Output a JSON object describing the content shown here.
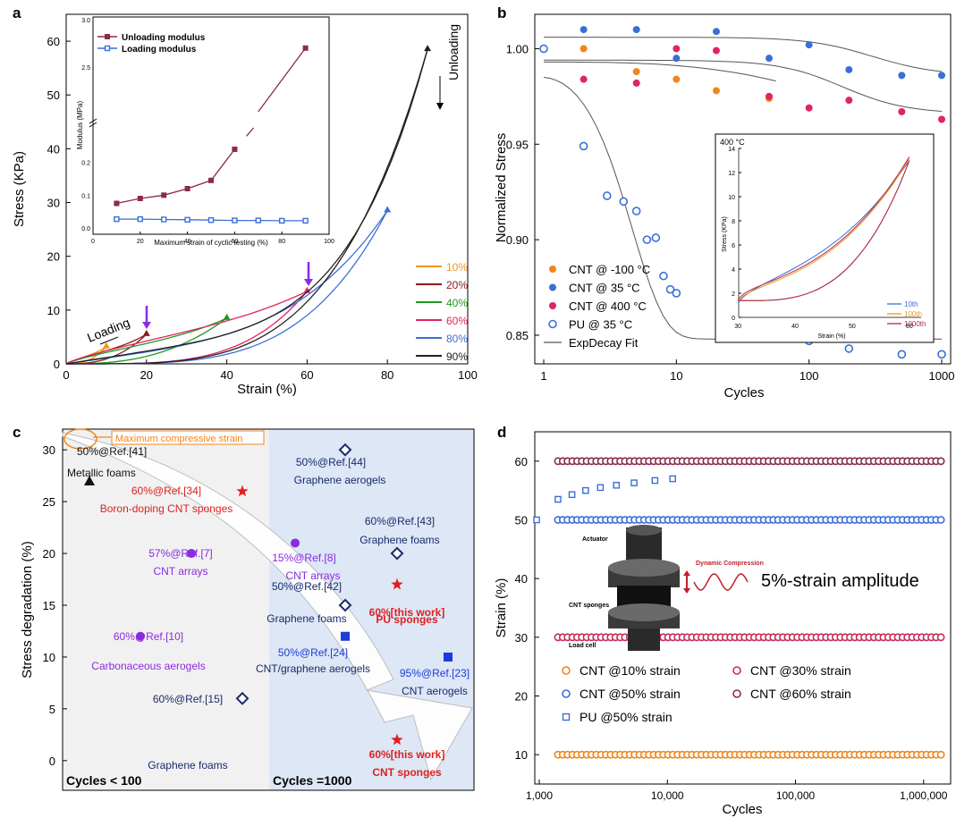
{
  "panel_letters": [
    "a",
    "b",
    "c",
    "d"
  ],
  "panel_a_notes": {
    "loading": "Loading",
    "unloading": "Unloading"
  },
  "panel_b_notes": {
    "inset_temp": "400 °C"
  },
  "panel_d_notes": {
    "actuator": "Actuator",
    "sponges": "CNT sponges",
    "load_cell": "Load cell",
    "dynamic": "Dynamic Compression",
    "amplitude": "5%-strain amplitude"
  },
  "chart_data": [
    {
      "id": "a",
      "type": "line",
      "xlabel": "Strain (%)",
      "ylabel": "Stress (KPa)",
      "xlim": [
        0,
        100
      ],
      "ylim": [
        0,
        65
      ],
      "xticks": [
        0,
        20,
        40,
        60,
        80,
        100
      ],
      "yticks": [
        0,
        10,
        20,
        30,
        40,
        50,
        60
      ],
      "legend_position": "right",
      "series": [
        {
          "name": "10%",
          "color": "#f0961c",
          "max_strain": 10,
          "peak": 3.2
        },
        {
          "name": "20%",
          "color": "#8b1a1a",
          "max_strain": 20,
          "peak": 5.5
        },
        {
          "name": "40%",
          "color": "#1f9a1f",
          "max_strain": 40,
          "peak": 8.5
        },
        {
          "name": "60%",
          "color": "#e0255f",
          "max_strain": 60,
          "peak": 13.5
        },
        {
          "name": "80%",
          "color": "#3a6fd8",
          "max_strain": 80,
          "peak": 28.5
        },
        {
          "name": "90%",
          "color": "#222222",
          "max_strain": 90,
          "peak": 58.5
        }
      ],
      "annotations": [
        "Loading",
        "Unloading"
      ],
      "inset": {
        "xlabel": "Maximum strain of cyclic testing (%)",
        "ylabel": "Modulus (MPa)",
        "xticks": [
          0,
          20,
          40,
          60,
          80,
          100
        ],
        "yticks_lower": [
          "0.0",
          "0.1",
          "0.2"
        ],
        "yticks_upper": [
          "2.5",
          "3.0"
        ],
        "series": [
          {
            "name": "Unloading modulus",
            "color": "#8b2a4a",
            "x": [
              10,
              20,
              30,
              40,
              50,
              60,
              90
            ],
            "y": [
              0.075,
              0.09,
              0.1,
              0.12,
              0.145,
              0.24,
              2.7
            ]
          },
          {
            "name": "Loading modulus",
            "color": "#3a6fd8",
            "x": [
              10,
              20,
              30,
              40,
              50,
              60,
              70,
              80,
              90
            ],
            "y": [
              0.027,
              0.027,
              0.026,
              0.025,
              0.024,
              0.023,
              0.023,
              0.022,
              0.022
            ]
          }
        ]
      }
    },
    {
      "id": "b",
      "type": "scatter",
      "xlabel": "Cycles",
      "ylabel": "Normalized Stress",
      "xscale": "log",
      "xlim": [
        1,
        1000
      ],
      "ylim": [
        0.835,
        1.018
      ],
      "xticks": [
        "1",
        "10",
        "100",
        "1000"
      ],
      "yticks": [
        "0.85",
        "0.90",
        "0.95",
        "1.00"
      ],
      "legend_position": "bottom-left",
      "series": [
        {
          "name": "CNT @ -100 °C",
          "color": "#f0861c",
          "marker": "filled",
          "x": [
            1,
            2,
            5,
            10,
            20,
            50,
            100,
            200,
            500,
            1000
          ],
          "y": [
            1.0,
            1.0,
            0.988,
            0.984,
            0.978,
            0.974,
            null,
            null,
            null,
            null
          ]
        },
        {
          "name": "CNT @ 35 °C",
          "color": "#3a6fd8",
          "marker": "filled",
          "x": [
            2,
            5,
            10,
            20,
            50,
            100,
            200,
            500,
            1000
          ],
          "y": [
            1.01,
            1.01,
            0.995,
            1.009,
            0.995,
            1.002,
            0.989,
            0.986,
            0.986
          ]
        },
        {
          "name": "CNT @ 400 °C",
          "color": "#e0255f",
          "marker": "filled",
          "x": [
            2,
            5,
            10,
            20,
            50,
            100,
            200,
            500,
            1000
          ],
          "y": [
            0.984,
            0.982,
            1.0,
            0.999,
            0.975,
            0.969,
            0.973,
            0.967,
            0.963
          ]
        },
        {
          "name": "PU @ 35 °C",
          "color": "#3a6fd8",
          "marker": "open",
          "x": [
            1,
            2,
            3,
            4,
            5,
            6,
            7,
            8,
            9,
            10,
            50,
            100,
            200,
            500,
            1000
          ],
          "y": [
            1.0,
            0.949,
            0.923,
            0.92,
            0.915,
            0.9,
            0.901,
            0.881,
            0.874,
            0.872,
            0.855,
            0.847,
            0.843,
            0.84,
            0.84
          ]
        },
        {
          "name": "ExpDecay Fit",
          "color": "#555555",
          "marker": "line"
        }
      ],
      "inset": {
        "label": "400 °C",
        "xlabel": "Strain (%)",
        "ylabel": "Stress (KPa)",
        "xticks": [
          "30",
          "40",
          "50",
          "60"
        ],
        "yticks": [
          "0",
          "2",
          "4",
          "6",
          "8",
          "10",
          "12",
          "14"
        ],
        "series": [
          {
            "name": "10th",
            "color": "#3a6fd8"
          },
          {
            "name": "100th",
            "color": "#f0961c"
          },
          {
            "name": "1000th",
            "color": "#b0284a"
          }
        ]
      }
    },
    {
      "id": "c",
      "type": "scatter",
      "xlabel": "",
      "ylabel": "Stress degradation (%)",
      "ylim": [
        -2,
        32
      ],
      "yticks": [
        0,
        5,
        10,
        15,
        20,
        25,
        30
      ],
      "regions": [
        "Cycles < 100",
        "Cycles =1000"
      ],
      "annotation": "Maximum compressive strain",
      "points": [
        {
          "label": "50%@Ref.[41]",
          "material": "Metallic foams",
          "y": 27,
          "group": "low",
          "marker": "triangle",
          "color": "#111111"
        },
        {
          "label": "60%@Ref.[34]",
          "material": "Boron-doping CNT sponges",
          "y": 26,
          "group": "low",
          "marker": "star",
          "color": "#e02020"
        },
        {
          "label": "57%@Ref.[7]",
          "material": "CNT arrays",
          "y": 20,
          "group": "low",
          "marker": "circle",
          "color": "#8a2be2"
        },
        {
          "label": "60%@Ref.[10]",
          "material": "Carbonaceous aerogels",
          "y": 12,
          "group": "low",
          "marker": "circle",
          "color": "#8a2be2"
        },
        {
          "label": "60%@Ref.[15]",
          "material": "Graphene foams",
          "y": 6,
          "group": "low",
          "marker": "open-diamond",
          "color": "#1a2a6c"
        },
        {
          "label": "50%@Ref.[44]",
          "material": "Graphene aerogels",
          "y": 30,
          "group": "high",
          "marker": "open-diamond",
          "color": "#1a2a6c"
        },
        {
          "label": "15%@Ref.[8]",
          "material": "CNT arrays",
          "y": 21,
          "group": "high",
          "marker": "circle",
          "color": "#8a2be2"
        },
        {
          "label": "60%@Ref.[43]",
          "material": "Graphene foams",
          "y": 20,
          "group": "high",
          "marker": "open-diamond",
          "color": "#1a2a6c"
        },
        {
          "label": "50%@Ref.[42]",
          "material": "Graphene foams",
          "y": 15,
          "group": "high",
          "marker": "open-diamond",
          "color": "#1a2a6c"
        },
        {
          "label": "60%[this work]",
          "material": "PU sponges",
          "y": 17,
          "group": "high",
          "marker": "star",
          "color": "#e02020"
        },
        {
          "label": "50%@Ref.[24]",
          "material": "CNT/graphene aerogels",
          "y": 12,
          "group": "high",
          "marker": "square",
          "color": "#1e3adb"
        },
        {
          "label": "95%@Ref.[23]",
          "material": "CNT aerogels",
          "y": 10,
          "group": "high",
          "marker": "square",
          "color": "#1e3adb"
        },
        {
          "label": "60%[this work]",
          "material": "CNT sponges",
          "y": 2,
          "group": "high",
          "marker": "star",
          "color": "#e02020"
        }
      ]
    },
    {
      "id": "d",
      "type": "scatter",
      "xlabel": "Cycles",
      "ylabel": "Strain (%)",
      "xscale": "log",
      "xlim": [
        1000,
        1500000
      ],
      "ylim": [
        5,
        65
      ],
      "xticks": [
        "1,000",
        "10,000",
        "100,000",
        "1,000,000"
      ],
      "yticks": [
        "10",
        "20",
        "30",
        "40",
        "50",
        "60"
      ],
      "legend_position": "bottom",
      "series": [
        {
          "name": "CNT @10% strain",
          "color": "#f0861c",
          "marker": "open-circle",
          "y": 10
        },
        {
          "name": "CNT @30% strain",
          "color": "#c82a55",
          "marker": "open-circle",
          "y": 30
        },
        {
          "name": "CNT @50% strain",
          "color": "#3a6fd8",
          "marker": "open-circle",
          "y": 50
        },
        {
          "name": "CNT @60% strain",
          "color": "#8b2a4a",
          "marker": "open-circle",
          "y": 60
        },
        {
          "name": "PU @50% strain",
          "color": "#3a6fd8",
          "marker": "open-square",
          "x": [
            1000,
            1400,
            1800,
            2300,
            3000,
            4000,
            5500,
            8000,
            11000
          ],
          "y": [
            50,
            53.5,
            54.3,
            55,
            55.5,
            55.9,
            56.3,
            56.7,
            57
          ]
        }
      ]
    }
  ]
}
